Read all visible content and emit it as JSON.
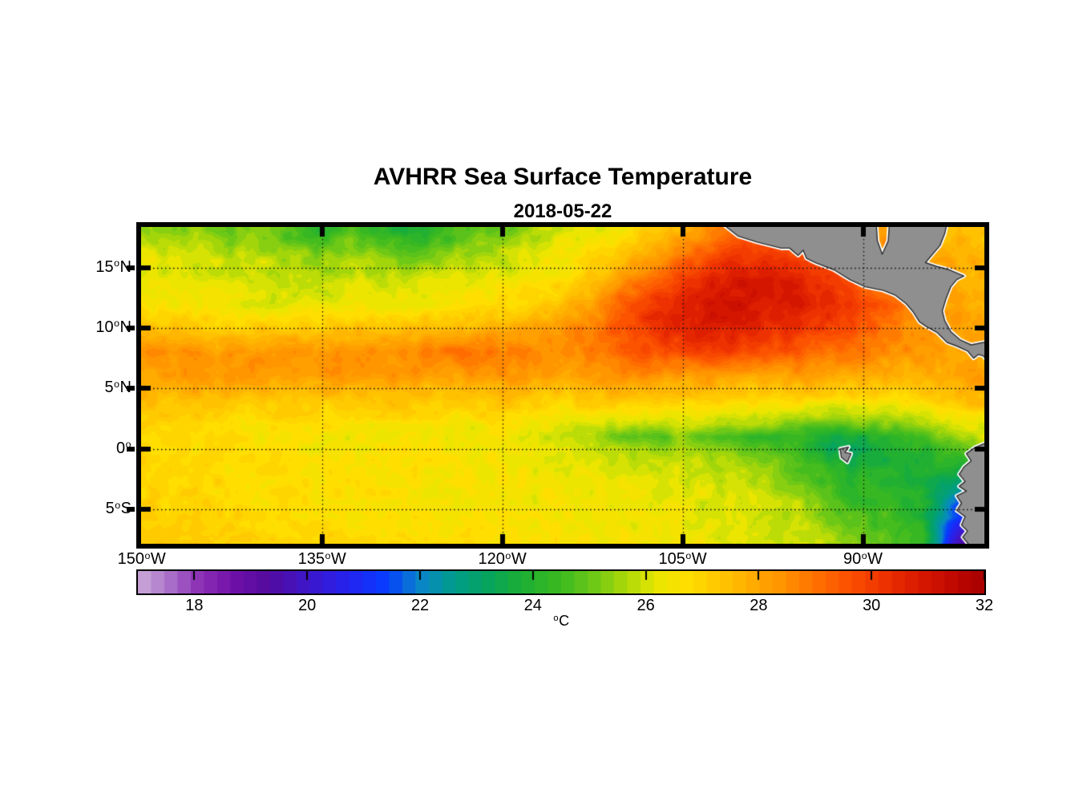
{
  "title": "AVHRR Sea Surface Temperature",
  "subtitle": "2018-05-22",
  "colors": {
    "background": "#ffffff",
    "axis": "#000000",
    "gridline": "#101010",
    "text": "#000000"
  },
  "chart_data": {
    "type": "heatmap",
    "title": "AVHRR Sea Surface Temperature",
    "date": "2018-05-22",
    "variable": "sea surface temperature",
    "units": "degC",
    "lon_range": [
      -150.05,
      -79.9
    ],
    "lat_range": [
      -7.85,
      18.35
    ],
    "grid_on": true,
    "x_axis": {
      "ticks": [
        {
          "label": "150",
          "sup": "o",
          "suffix": "W",
          "lon": -150,
          "grid": false
        },
        {
          "label": "135",
          "sup": "o",
          "suffix": "W",
          "lon": -135,
          "grid": true
        },
        {
          "label": "120",
          "sup": "o",
          "suffix": "W",
          "lon": -120,
          "grid": true
        },
        {
          "label": "105",
          "sup": "o",
          "suffix": "W",
          "lon": -105,
          "grid": true
        },
        {
          "label": "90",
          "sup": "o",
          "suffix": "W",
          "lon": -90,
          "grid": true
        }
      ]
    },
    "y_axis": {
      "ticks": [
        {
          "label": "15",
          "sup": "o",
          "suffix": "N",
          "lat": 15
        },
        {
          "label": "10",
          "sup": "o",
          "suffix": "N",
          "lat": 10
        },
        {
          "label": "5",
          "sup": "o",
          "suffix": "N",
          "lat": 5
        },
        {
          "label": "0",
          "sup": "o",
          "suffix": "",
          "lat": 0
        },
        {
          "label": "5",
          "sup": "o",
          "suffix": "S",
          "lat": -5
        }
      ]
    },
    "colorbar": {
      "range": [
        17,
        32
      ],
      "levels": 64,
      "ticks": [
        18,
        20,
        22,
        24,
        26,
        28,
        30,
        32
      ],
      "unit_sup": "o",
      "unit_base": "C",
      "orientation": "horizontal",
      "stops": [
        [
          17.0,
          "#cbaad8"
        ],
        [
          17.6,
          "#a76cc8"
        ],
        [
          18.1,
          "#8c2fb4"
        ],
        [
          18.7,
          "#6f10a8"
        ],
        [
          19.3,
          "#540a9e"
        ],
        [
          20.0,
          "#3e16c8"
        ],
        [
          20.7,
          "#2522ee"
        ],
        [
          21.4,
          "#063cff"
        ],
        [
          22.0,
          "#0a86c8"
        ],
        [
          22.6,
          "#009c8c"
        ],
        [
          23.2,
          "#06a45e"
        ],
        [
          23.8,
          "#1cae34"
        ],
        [
          24.5,
          "#3cba20"
        ],
        [
          25.1,
          "#6fc816"
        ],
        [
          25.7,
          "#b2da08"
        ],
        [
          26.2,
          "#e9e600"
        ],
        [
          26.7,
          "#ffdf00"
        ],
        [
          27.2,
          "#ffcb00"
        ],
        [
          27.8,
          "#ffb000"
        ],
        [
          28.4,
          "#ff9400"
        ],
        [
          29.0,
          "#ff7100"
        ],
        [
          29.6,
          "#fc5000"
        ],
        [
          30.2,
          "#ef3300"
        ],
        [
          30.8,
          "#da1a00"
        ],
        [
          31.4,
          "#c20900"
        ],
        [
          32.0,
          "#a60000"
        ]
      ]
    },
    "sst_grid": {
      "lons": [
        -150,
        -147.5,
        -145,
        -142.5,
        -140,
        -137.5,
        -135,
        -132.5,
        -130,
        -127.5,
        -125,
        -122.5,
        -120,
        -117.5,
        -115,
        -112.5,
        -110,
        -107.5,
        -105,
        -102.5,
        -100,
        -97.5,
        -95,
        -92.5,
        -90,
        -87.5,
        -85,
        -82.5,
        -80
      ],
      "lats": [
        18,
        16,
        14,
        12,
        10,
        8,
        6,
        4,
        2,
        1,
        0,
        -1,
        -2.5,
        -4,
        -6,
        -8
      ],
      "values": [
        [
          25.4,
          25.2,
          25.5,
          25.0,
          25.3,
          24.6,
          24.2,
          24.8,
          24.1,
          23.8,
          24.3,
          24.9,
          25.1,
          25.5,
          26.0,
          26.2,
          26.5,
          27.1,
          27.7,
          28.5,
          29.2,
          29.5,
          29.0,
          28.6,
          28.3,
          28.0,
          27.8,
          27.6,
          27.5
        ],
        [
          26.1,
          26.0,
          26.0,
          25.8,
          25.8,
          25.5,
          25.2,
          25.5,
          25.2,
          25.0,
          25.3,
          25.6,
          25.8,
          26.2,
          26.5,
          26.8,
          27.3,
          28.0,
          28.8,
          29.6,
          30.2,
          30.1,
          29.6,
          29.2,
          28.8,
          28.4,
          28.0,
          27.8,
          27.6
        ],
        [
          26.3,
          26.2,
          26.2,
          26.1,
          26.0,
          25.8,
          25.8,
          26.0,
          25.8,
          26.0,
          26.2,
          26.3,
          26.3,
          26.5,
          26.8,
          27.3,
          28.2,
          29.2,
          30.0,
          30.6,
          30.8,
          30.9,
          30.5,
          30.0,
          29.2,
          28.6,
          28.1,
          27.9,
          27.8
        ],
        [
          26.5,
          26.4,
          26.4,
          26.3,
          26.2,
          26.2,
          26.2,
          26.4,
          26.4,
          26.4,
          26.5,
          26.6,
          26.8,
          27.0,
          27.4,
          28.2,
          29.4,
          30.2,
          30.8,
          31.0,
          31.0,
          30.8,
          30.8,
          30.4,
          29.8,
          29.2,
          28.6,
          28.0,
          27.8
        ],
        [
          27.4,
          27.4,
          27.2,
          27.0,
          27.2,
          27.2,
          27.3,
          27.4,
          27.4,
          27.5,
          27.5,
          27.6,
          27.8,
          28.0,
          28.3,
          28.8,
          29.6,
          30.2,
          30.6,
          30.8,
          30.7,
          30.4,
          30.2,
          29.8,
          29.4,
          28.8,
          28.4,
          28.2,
          28.0
        ],
        [
          28.3,
          28.4,
          28.3,
          28.2,
          28.4,
          28.3,
          28.4,
          28.5,
          28.4,
          28.6,
          28.8,
          29.0,
          28.8,
          28.6,
          28.6,
          28.8,
          29.2,
          29.6,
          29.8,
          30.0,
          29.8,
          29.6,
          29.4,
          29.0,
          28.8,
          28.5,
          28.2,
          28.0,
          27.8
        ],
        [
          28.0,
          28.2,
          28.4,
          28.2,
          28.2,
          28.0,
          28.2,
          28.4,
          28.2,
          28.2,
          28.0,
          28.2,
          28.4,
          28.2,
          28.0,
          28.2,
          28.4,
          28.4,
          28.2,
          28.2,
          28.0,
          28.0,
          28.2,
          28.0,
          27.8,
          27.6,
          27.8,
          28.0,
          28.2
        ],
        [
          27.6,
          27.4,
          27.5,
          27.4,
          27.2,
          27.4,
          27.3,
          27.2,
          27.3,
          27.4,
          27.2,
          27.3,
          27.4,
          27.2,
          27.0,
          27.2,
          27.3,
          27.2,
          27.0,
          27.2,
          27.0,
          26.8,
          26.8,
          26.6,
          26.8,
          26.6,
          27.0,
          27.4,
          27.6
        ],
        [
          27.0,
          26.8,
          27.0,
          26.8,
          26.6,
          26.8,
          26.6,
          26.5,
          26.6,
          26.8,
          26.6,
          26.5,
          26.6,
          26.4,
          26.2,
          26.1,
          26.0,
          25.8,
          26.0,
          25.8,
          25.6,
          25.4,
          25.0,
          24.9,
          25.1,
          25.3,
          25.6,
          26.0,
          26.3
        ],
        [
          26.9,
          26.8,
          26.8,
          26.7,
          26.6,
          26.6,
          26.5,
          26.4,
          26.5,
          26.6,
          26.4,
          26.3,
          26.4,
          26.2,
          25.9,
          25.5,
          25.0,
          24.5,
          25.4,
          24.6,
          24.5,
          24.3,
          24.2,
          23.4,
          23.8,
          24.2,
          24.6,
          25.4,
          26.0
        ],
        [
          26.9,
          26.8,
          26.8,
          26.7,
          26.6,
          26.6,
          26.5,
          26.5,
          26.6,
          26.6,
          26.5,
          26.4,
          26.5,
          26.3,
          26.0,
          25.8,
          25.6,
          25.4,
          25.6,
          25.4,
          25.0,
          24.8,
          24.3,
          23.2,
          23.4,
          23.8,
          24.0,
          24.6,
          25.2
        ],
        [
          26.9,
          26.8,
          26.8,
          26.8,
          26.7,
          26.7,
          26.6,
          26.6,
          26.6,
          26.7,
          26.6,
          26.5,
          26.5,
          26.4,
          26.2,
          26.0,
          25.9,
          25.8,
          25.9,
          25.7,
          25.4,
          25.2,
          24.6,
          23.8,
          23.6,
          23.8,
          24.0,
          24.2,
          24.0
        ],
        [
          27.0,
          26.9,
          26.9,
          26.8,
          26.8,
          26.7,
          26.7,
          26.6,
          26.6,
          26.6,
          26.5,
          26.5,
          26.5,
          26.4,
          26.4,
          26.3,
          26.3,
          26.2,
          26.2,
          26.0,
          25.8,
          25.4,
          25.0,
          24.4,
          24.2,
          24.0,
          23.8,
          23.2,
          22.8
        ],
        [
          27.0,
          27.0,
          26.9,
          26.9,
          26.8,
          26.8,
          26.7,
          26.7,
          26.6,
          26.6,
          26.6,
          26.5,
          26.5,
          26.4,
          26.4,
          26.4,
          26.3,
          26.3,
          26.2,
          26.1,
          26.0,
          25.8,
          25.6,
          24.6,
          24.2,
          24.2,
          23.8,
          22.2,
          20.8
        ],
        [
          27.2,
          27.1,
          27.0,
          27.0,
          26.9,
          26.8,
          26.8,
          26.7,
          26.7,
          26.6,
          26.6,
          26.5,
          26.6,
          26.5,
          26.5,
          26.4,
          26.4,
          26.3,
          26.3,
          26.2,
          26.0,
          25.9,
          25.8,
          25.2,
          24.8,
          24.6,
          24.0,
          21.4,
          19.6
        ],
        [
          27.4,
          27.3,
          27.2,
          27.1,
          27.0,
          27.0,
          26.9,
          26.9,
          26.8,
          26.8,
          26.8,
          26.7,
          26.7,
          26.6,
          26.6,
          26.5,
          26.5,
          26.4,
          26.4,
          26.3,
          26.2,
          26.0,
          25.9,
          25.6,
          25.2,
          24.8,
          24.2,
          20.2,
          17.8
        ]
      ]
    },
    "land": {
      "fill": "#8f8f8f",
      "outline": "#2e2e2e",
      "halo": "#ffffff",
      "polygons": [
        {
          "name": "central-america",
          "points": [
            [
              -101.8,
              18.7
            ],
            [
              -100.4,
              17.6
            ],
            [
              -98.8,
              17.1
            ],
            [
              -96.8,
              16.6
            ],
            [
              -96.1,
              16.6
            ],
            [
              -95.4,
              16.0
            ],
            [
              -94.97,
              16.43
            ],
            [
              -94.7,
              15.76
            ],
            [
              -93.9,
              15.37
            ],
            [
              -92.4,
              14.8
            ],
            [
              -91.1,
              14.0
            ],
            [
              -89.8,
              13.4
            ],
            [
              -88.3,
              13.1
            ],
            [
              -87.3,
              12.7
            ],
            [
              -86.4,
              12.0
            ],
            [
              -85.8,
              11.3
            ],
            [
              -85.3,
              10.5
            ],
            [
              -84.7,
              10.1
            ],
            [
              -83.8,
              9.6
            ],
            [
              -83.0,
              8.8
            ],
            [
              -82.2,
              8.5
            ],
            [
              -81.3,
              8.1
            ],
            [
              -80.8,
              7.5
            ],
            [
              -80.4,
              7.8
            ],
            [
              -80.0,
              7.7
            ],
            [
              -79.5,
              7.1
            ],
            [
              -79.5,
              8.9
            ],
            [
              -81.0,
              8.6
            ],
            [
              -81.9,
              9.0
            ],
            [
              -82.7,
              9.7
            ],
            [
              -83.2,
              10.6
            ],
            [
              -83.4,
              11.4
            ],
            [
              -83.1,
              12.4
            ],
            [
              -82.7,
              13.4
            ],
            [
              -82.2,
              14.0
            ],
            [
              -81.6,
              14.3
            ],
            [
              -82.8,
              14.8
            ],
            [
              -83.9,
              15.1
            ],
            [
              -84.8,
              15.4
            ],
            [
              -84.3,
              16.0
            ],
            [
              -83.6,
              16.8
            ],
            [
              -83.2,
              17.8
            ],
            [
              -83.0,
              18.7
            ],
            [
              -87.8,
              18.7
            ],
            [
              -87.9,
              17.2
            ],
            [
              -88.4,
              16.1
            ],
            [
              -88.8,
              17.2
            ],
            [
              -88.9,
              18.7
            ]
          ]
        },
        {
          "name": "south-america",
          "points": [
            [
              -79.5,
              0.6
            ],
            [
              -80.7,
              0.1
            ],
            [
              -81.4,
              -0.4
            ],
            [
              -81.0,
              -1.0
            ],
            [
              -81.6,
              -1.5
            ],
            [
              -82.0,
              -2.1
            ],
            [
              -81.5,
              -2.7
            ],
            [
              -82.0,
              -3.1
            ],
            [
              -81.4,
              -3.5
            ],
            [
              -82.2,
              -3.9
            ],
            [
              -81.8,
              -4.5
            ],
            [
              -82.2,
              -5.1
            ],
            [
              -81.5,
              -5.6
            ],
            [
              -81.8,
              -6.3
            ],
            [
              -81.3,
              -6.8
            ],
            [
              -81.7,
              -7.3
            ],
            [
              -81.2,
              -7.9
            ],
            [
              -81.0,
              -8.3
            ],
            [
              -79.5,
              -8.3
            ]
          ]
        },
        {
          "name": "galapagos-island",
          "points": [
            [
              -91.9,
              0.0
            ],
            [
              -91.2,
              0.15
            ],
            [
              -91.5,
              -0.3
            ],
            [
              -91.0,
              -0.4
            ],
            [
              -91.3,
              -1.1
            ],
            [
              -91.8,
              -0.7
            ]
          ]
        }
      ]
    }
  }
}
